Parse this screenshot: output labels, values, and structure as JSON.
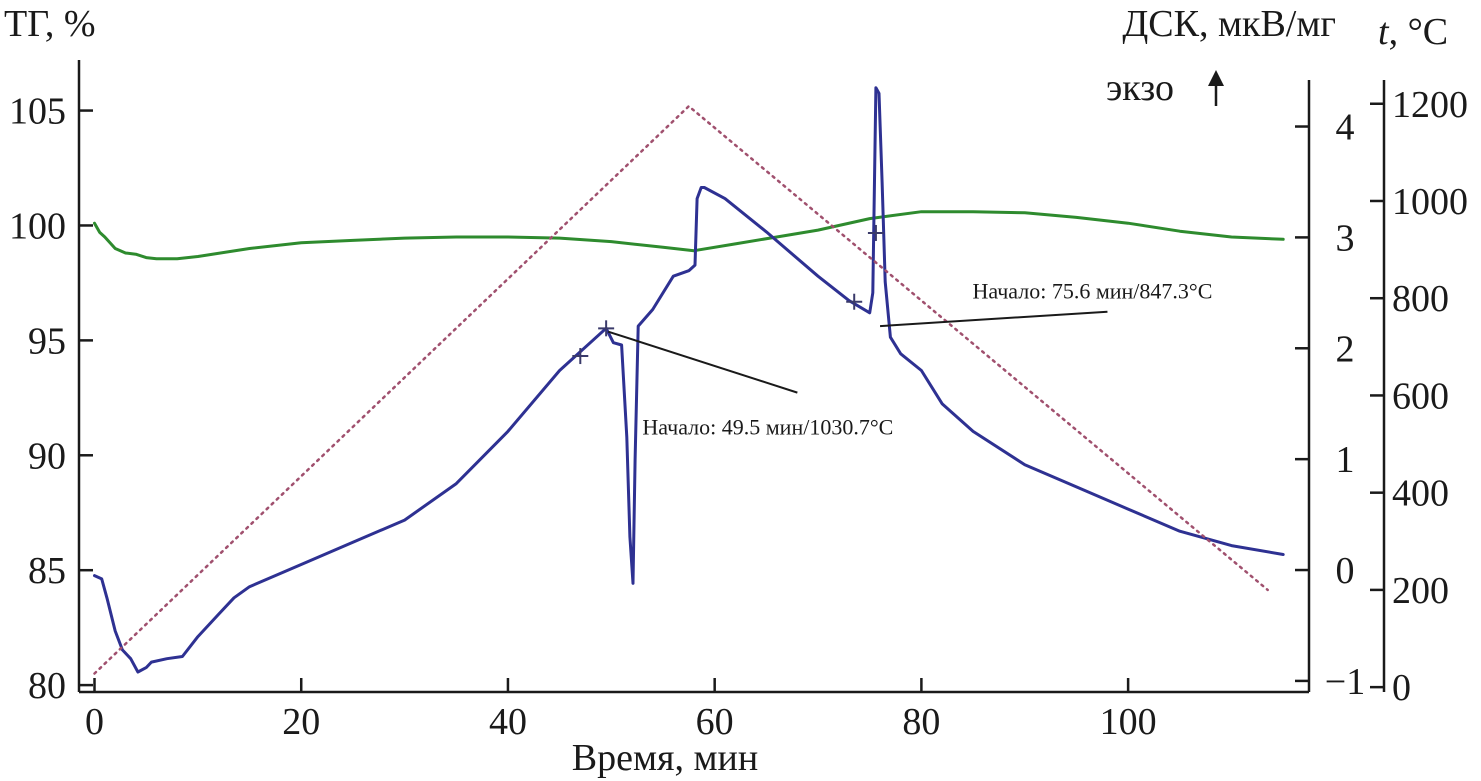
{
  "chart_data": {
    "type": "line",
    "xlabel": "Время, мин",
    "x_ticks": [
      0,
      20,
      40,
      60,
      80,
      100
    ],
    "xlim": [
      -1.5,
      117.5
    ],
    "axes": {
      "tg": {
        "label": "ТГ, %",
        "ticks": [
          80,
          85,
          90,
          95,
          100,
          105
        ],
        "lim": [
          79.7,
          107.2
        ]
      },
      "dsc": {
        "label": "ДСК, мкВ/мг",
        "exo_label": "экзо",
        "ticks": [
          -1,
          0,
          1,
          2,
          3,
          4
        ],
        "lim": [
          -1.1,
          4.6
        ]
      },
      "temp": {
        "label_italic": "t",
        "label_unit": ", °C",
        "ticks": [
          0,
          200,
          400,
          600,
          800,
          1000,
          1200
        ],
        "lim": [
          -10,
          1290
        ]
      }
    },
    "series": [
      {
        "name": "ТГ",
        "axis": "tg",
        "color": "#2e8b2e",
        "style": "solid",
        "points": [
          [
            0,
            100.1
          ],
          [
            0.5,
            99.7
          ],
          [
            1,
            99.5
          ],
          [
            2,
            99.0
          ],
          [
            3,
            98.8
          ],
          [
            4,
            98.75
          ],
          [
            5,
            98.6
          ],
          [
            6,
            98.55
          ],
          [
            8,
            98.55
          ],
          [
            10,
            98.65
          ],
          [
            15,
            99.0
          ],
          [
            20,
            99.25
          ],
          [
            25,
            99.35
          ],
          [
            30,
            99.45
          ],
          [
            35,
            99.5
          ],
          [
            40,
            99.5
          ],
          [
            45,
            99.45
          ],
          [
            50,
            99.3
          ],
          [
            55,
            99.05
          ],
          [
            58,
            98.9
          ],
          [
            62,
            99.2
          ],
          [
            66,
            99.5
          ],
          [
            70,
            99.8
          ],
          [
            75,
            100.3
          ],
          [
            80,
            100.6
          ],
          [
            85,
            100.6
          ],
          [
            90,
            100.55
          ],
          [
            95,
            100.35
          ],
          [
            100,
            100.1
          ],
          [
            105,
            99.75
          ],
          [
            110,
            99.5
          ],
          [
            115,
            99.4
          ]
        ]
      },
      {
        "name": "ДСК",
        "axis": "dsc",
        "color": "#2e3192",
        "style": "solid",
        "points": [
          [
            0,
            -0.05
          ],
          [
            0.7,
            -0.08
          ],
          [
            1.2,
            -0.25
          ],
          [
            2,
            -0.55
          ],
          [
            2.7,
            -0.72
          ],
          [
            3.5,
            -0.8
          ],
          [
            4.2,
            -0.92
          ],
          [
            5,
            -0.88
          ],
          [
            5.5,
            -0.83
          ],
          [
            7,
            -0.8
          ],
          [
            8.5,
            -0.78
          ],
          [
            10,
            -0.6
          ],
          [
            12,
            -0.4
          ],
          [
            13.5,
            -0.25
          ],
          [
            15,
            -0.15
          ],
          [
            20,
            0.05
          ],
          [
            25,
            0.25
          ],
          [
            30,
            0.45
          ],
          [
            35,
            0.78
          ],
          [
            40,
            1.25
          ],
          [
            45,
            1.8
          ],
          [
            49.5,
            2.18
          ],
          [
            50.2,
            2.05
          ],
          [
            51,
            2.03
          ],
          [
            51.5,
            1.2
          ],
          [
            51.8,
            0.3
          ],
          [
            52.1,
            -0.12
          ],
          [
            52.3,
            1.0
          ],
          [
            52.6,
            2.2
          ],
          [
            54,
            2.35
          ],
          [
            56,
            2.65
          ],
          [
            57.5,
            2.7
          ],
          [
            58.1,
            2.75
          ],
          [
            58.3,
            3.35
          ],
          [
            58.7,
            3.45
          ],
          [
            59,
            3.45
          ],
          [
            61,
            3.35
          ],
          [
            65,
            3.05
          ],
          [
            70,
            2.65
          ],
          [
            73,
            2.43
          ],
          [
            75,
            2.32
          ],
          [
            75.3,
            2.5
          ],
          [
            75.6,
            4.35
          ],
          [
            75.9,
            4.3
          ],
          [
            76.2,
            3.5
          ],
          [
            76.5,
            2.6
          ],
          [
            77,
            2.1
          ],
          [
            78,
            1.95
          ],
          [
            80,
            1.8
          ],
          [
            82,
            1.5
          ],
          [
            85,
            1.25
          ],
          [
            90,
            0.95
          ],
          [
            95,
            0.75
          ],
          [
            100,
            0.55
          ],
          [
            105,
            0.35
          ],
          [
            110,
            0.22
          ],
          [
            115,
            0.14
          ]
        ]
      },
      {
        "name": "t",
        "axis": "temp",
        "color": "#a0506e",
        "style": "dotted",
        "points": [
          [
            0,
            28
          ],
          [
            57.5,
            1195
          ],
          [
            113.5,
            200
          ]
        ]
      }
    ],
    "markers": [
      {
        "axis": "dsc",
        "x": 47,
        "y": 1.93
      },
      {
        "axis": "dsc",
        "x": 49.5,
        "y": 2.18
      },
      {
        "axis": "dsc",
        "x": 73.5,
        "y": 2.42
      },
      {
        "axis": "dsc",
        "x": 75.6,
        "y": 3.04
      }
    ],
    "annotations": [
      {
        "text": "Начало: 49.5 мин/1030.7°C",
        "axis": "dsc",
        "from": [
          49.7,
          2.15
        ],
        "to": [
          68,
          1.6
        ]
      },
      {
        "text": "Начало: 75.6 мин/847.3°C",
        "axis": "dsc",
        "from": [
          76,
          2.2
        ],
        "to": [
          98,
          2.33
        ]
      }
    ]
  }
}
